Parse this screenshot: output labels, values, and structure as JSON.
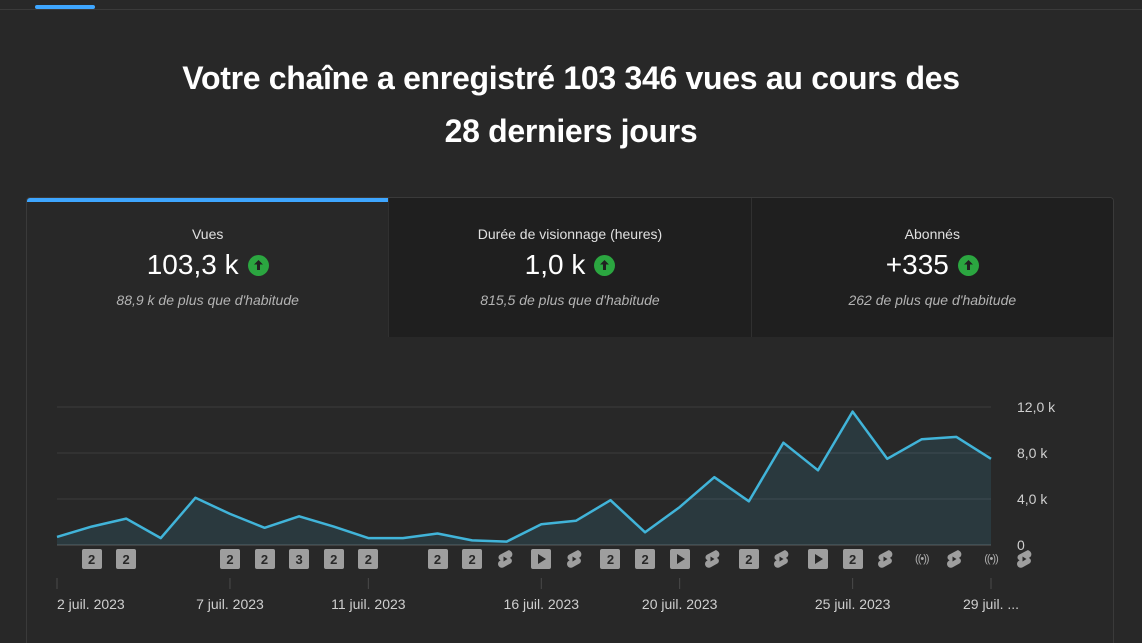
{
  "headline": {
    "line1": "Votre chaîne a enregistré 103 346 vues au cours des",
    "line2": "28 derniers jours"
  },
  "colors": {
    "accent": "#3ea6ff",
    "up": "#2ba640",
    "line": "#41b4d9"
  },
  "metrics": [
    {
      "label": "Vues",
      "value": "103,3 k",
      "note": "88,9 k de plus que d'habitude",
      "trend_icon": "arrow-up-circle-icon",
      "active": true
    },
    {
      "label": "Durée de visionnage (heures)",
      "value": "1,0 k",
      "note": "815,5 de plus que d'habitude",
      "trend_icon": "arrow-up-circle-icon",
      "active": false
    },
    {
      "label": "Abonnés",
      "value": "+335",
      "note": "262 de plus que d'habitude",
      "trend_icon": "arrow-up-circle-icon",
      "active": false
    }
  ],
  "chart_data": {
    "type": "area",
    "series": [
      {
        "values": [
          700,
          1600,
          2300,
          600,
          4100,
          2700,
          1500,
          2500,
          1600,
          600,
          600,
          1000,
          400,
          300,
          1800,
          2100,
          3900,
          1100,
          3300,
          5900,
          3800,
          8900,
          6500,
          11600,
          7500,
          9200,
          9400,
          7500
        ]
      }
    ],
    "yticks": [
      "12,0 k",
      "8,0 k",
      "4,0 k",
      "0"
    ],
    "ylim": [
      0,
      12000
    ],
    "xtick_labels": [
      "2 juil. 2023",
      "7 juil. 2023",
      "11 juil. 2023",
      "16 juil. 2023",
      "20 juil. 2023",
      "25 juil. 2023",
      "29 juil. ..."
    ],
    "grid": true
  },
  "content_markers": [
    {
      "day": 1,
      "kind": "num",
      "text": "2"
    },
    {
      "day": 2,
      "kind": "num",
      "text": "2"
    },
    {
      "day": 5,
      "kind": "num",
      "text": "2"
    },
    {
      "day": 6,
      "kind": "num",
      "text": "2"
    },
    {
      "day": 7,
      "kind": "num",
      "text": "3"
    },
    {
      "day": 8,
      "kind": "num",
      "text": "2"
    },
    {
      "day": 9,
      "kind": "num",
      "text": "2"
    },
    {
      "day": 11,
      "kind": "num",
      "text": "2"
    },
    {
      "day": 12,
      "kind": "num",
      "text": "2"
    },
    {
      "day": 13,
      "kind": "short",
      "icon": "shorts-icon"
    },
    {
      "day": 14,
      "kind": "play",
      "icon": "video-play-icon"
    },
    {
      "day": 15,
      "kind": "short",
      "icon": "shorts-icon"
    },
    {
      "day": 16,
      "kind": "num",
      "text": "2"
    },
    {
      "day": 17,
      "kind": "num",
      "text": "2"
    },
    {
      "day": 18,
      "kind": "play",
      "icon": "video-play-icon"
    },
    {
      "day": 19,
      "kind": "short",
      "icon": "shorts-icon"
    },
    {
      "day": 20,
      "kind": "num",
      "text": "2"
    },
    {
      "day": 21,
      "kind": "short",
      "icon": "shorts-icon"
    },
    {
      "day": 22,
      "kind": "play",
      "icon": "video-play-icon"
    },
    {
      "day": 23,
      "kind": "num",
      "text": "2"
    },
    {
      "day": 24,
      "kind": "short",
      "icon": "shorts-icon"
    },
    {
      "day": 25,
      "kind": "live",
      "icon": "live-broadcast-icon",
      "text": "((•))"
    },
    {
      "day": 26,
      "kind": "short",
      "icon": "shorts-icon"
    },
    {
      "day": 27,
      "kind": "live",
      "icon": "live-broadcast-icon",
      "text": "((•))"
    },
    {
      "day": 28,
      "kind": "short",
      "icon": "shorts-icon"
    }
  ]
}
